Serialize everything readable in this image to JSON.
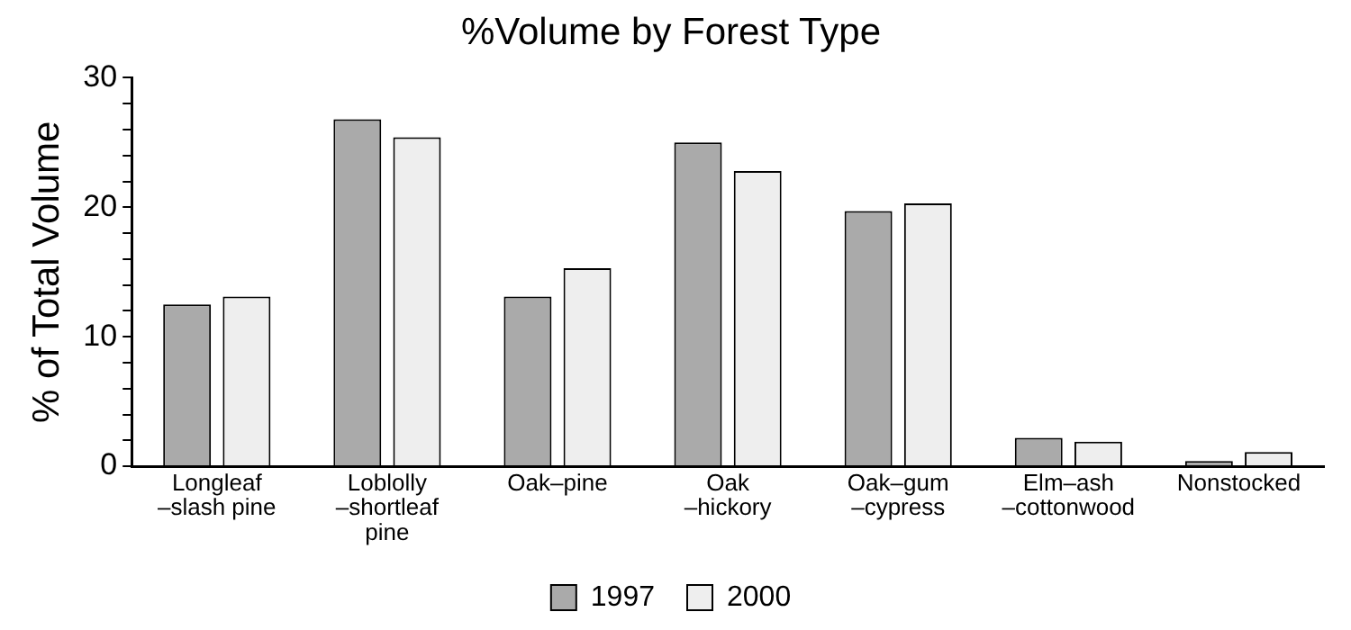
{
  "chart_data": {
    "type": "bar",
    "title": "%Volume by Forest Type",
    "ylabel": "% of Total Volume",
    "categories": [
      "Longleaf –slash pine",
      "Loblolly –shortleaf pine",
      "Oak–pine",
      "Oak –hickory",
      "Oak–gum –cypress",
      "Elm–ash –cottonwood",
      "Nonstocked"
    ],
    "series": [
      {
        "name": "1997",
        "color": "#aaaaaa",
        "values": [
          12.5,
          26.8,
          13.1,
          25.0,
          19.7,
          2.2,
          0.4
        ]
      },
      {
        "name": "2000",
        "color": "#eeeeee",
        "values": [
          13.1,
          25.4,
          15.3,
          22.8,
          20.3,
          1.9,
          1.1
        ]
      }
    ],
    "ylim": [
      0,
      30
    ],
    "yticks": [
      0,
      {
        "value": 2,
        "label": null
      },
      {
        "value": 4,
        "label": null
      },
      {
        "value": 6,
        "label": null
      },
      {
        "value": 8,
        "label": null
      },
      10,
      {
        "value": 12,
        "label": null
      },
      {
        "value": 14,
        "label": null
      },
      {
        "value": 16,
        "label": null
      },
      {
        "value": 18,
        "label": null
      },
      20,
      {
        "value": 22,
        "label": null
      },
      {
        "value": 24,
        "label": null
      },
      {
        "value": 26,
        "label": null
      },
      {
        "value": 28,
        "label": null
      },
      30
    ],
    "grid": false,
    "legend": "bottom"
  }
}
